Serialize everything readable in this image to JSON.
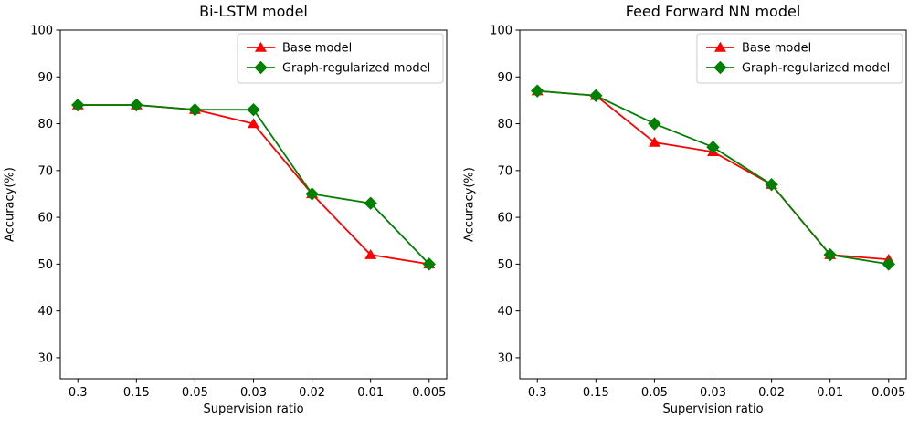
{
  "figure": {
    "background": "#ffffff",
    "text_color": "#000000",
    "axis_color": "#000000",
    "legend_border_color": "#cccccc"
  },
  "chart_data": [
    {
      "type": "line",
      "title": "Bi-LSTM model",
      "xlabel": "Supervision ratio",
      "ylabel": "Accuracy(%)",
      "categories": [
        "0.3",
        "0.15",
        "0.05",
        "0.03",
        "0.02",
        "0.01",
        "0.005"
      ],
      "yticks": [
        30,
        40,
        50,
        60,
        70,
        80,
        90,
        100
      ],
      "ylim": [
        25.5,
        100
      ],
      "grid": false,
      "legend_position": "upper right",
      "series": [
        {
          "name": "Base model",
          "color": "#ff0000",
          "marker": "triangle",
          "values": [
            84,
            84,
            83,
            80,
            65,
            52,
            50
          ]
        },
        {
          "name": "Graph-regularized model",
          "color": "#008000",
          "marker": "diamond",
          "values": [
            84,
            84,
            83,
            83,
            65,
            63,
            50
          ]
        }
      ]
    },
    {
      "type": "line",
      "title": "Feed Forward NN model",
      "xlabel": "Supervision ratio",
      "ylabel": "Accuracy(%)",
      "categories": [
        "0.3",
        "0.15",
        "0.05",
        "0.03",
        "0.02",
        "0.01",
        "0.005"
      ],
      "yticks": [
        30,
        40,
        50,
        60,
        70,
        80,
        90,
        100
      ],
      "ylim": [
        25.5,
        100
      ],
      "grid": false,
      "legend_position": "upper right",
      "series": [
        {
          "name": "Base model",
          "color": "#ff0000",
          "marker": "triangle",
          "values": [
            87,
            86,
            76,
            74,
            67,
            52,
            51
          ]
        },
        {
          "name": "Graph-regularized model",
          "color": "#008000",
          "marker": "diamond",
          "values": [
            87,
            86,
            80,
            75,
            67,
            52,
            50
          ]
        }
      ]
    }
  ]
}
